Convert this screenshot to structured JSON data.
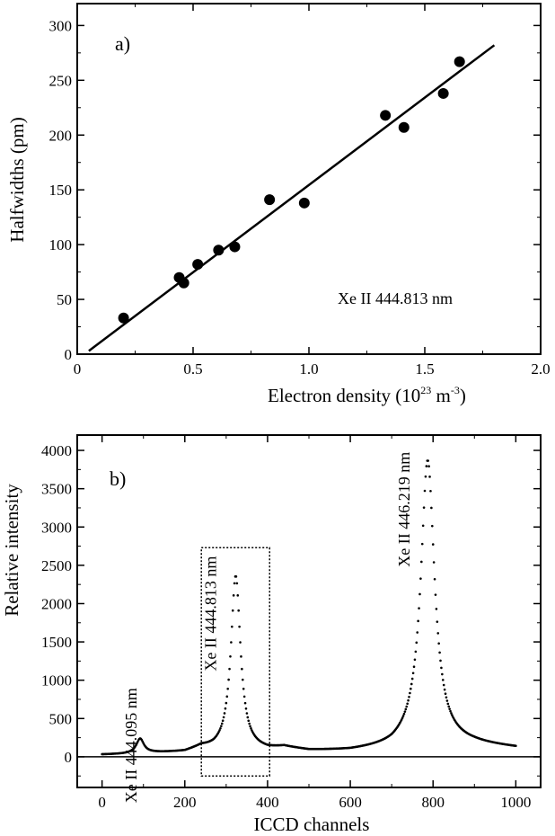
{
  "chart_data": [
    {
      "type": "scatter",
      "panel_label": "a)",
      "xlabel_main": "Electron density  (10",
      "xlabel_exp": "23",
      "xlabel_unit": " m",
      "xlabel_unit_exp": "-3",
      "xlabel_close": ")",
      "ylabel": "Halfwidths  (pm)",
      "xlim": [
        0,
        2.0
      ],
      "ylim": [
        0,
        320
      ],
      "xticks": [
        0,
        0.5,
        1.0,
        1.5,
        2.0
      ],
      "xtick_labels": [
        "0",
        "0.5",
        "1.0",
        "1.5",
        "2.0"
      ],
      "yticks": [
        0,
        50,
        100,
        150,
        200,
        250,
        300
      ],
      "ytick_labels": [
        "0",
        "50",
        "100",
        "150",
        "200",
        "250",
        "300"
      ],
      "annotation": "Xe II 444.813 nm",
      "points": {
        "x": [
          0.2,
          0.44,
          0.46,
          0.52,
          0.61,
          0.68,
          0.83,
          0.98,
          1.33,
          1.41,
          1.58,
          1.65
        ],
        "y": [
          33,
          70,
          65,
          82,
          95,
          98,
          141,
          138,
          218,
          207,
          238,
          267
        ]
      },
      "fit_line": {
        "x": [
          0.05,
          1.8
        ],
        "y": [
          3,
          282
        ]
      }
    },
    {
      "type": "line",
      "panel_label": "b)",
      "xlabel": "ICCD channels",
      "ylabel": "Relative intensity",
      "xlim": [
        -60,
        1060
      ],
      "ylim": [
        -400,
        4200
      ],
      "xticks": [
        0,
        200,
        400,
        600,
        800,
        1000
      ],
      "xtick_labels": [
        "0",
        "200",
        "400",
        "600",
        "800",
        "1000"
      ],
      "yticks": [
        0,
        500,
        1000,
        1500,
        2000,
        2500,
        3000,
        3500,
        4000
      ],
      "ytick_labels": [
        "0",
        "500",
        "1000",
        "1500",
        "2000",
        "2500",
        "3000",
        "3500",
        "4000"
      ],
      "peaks": [
        {
          "label": "Xe II 444.095 nm",
          "center": 92,
          "height": 190,
          "width": 11
        },
        {
          "label": "Xe II 444.813 nm",
          "center": 323,
          "height": 2280,
          "width": 14
        },
        {
          "label": "Xe II 446.219 nm",
          "center": 787,
          "height": 3700,
          "width": 20
        }
      ],
      "baseline": [
        [
          0,
          25
        ],
        [
          50,
          30
        ],
        [
          120,
          45
        ],
        [
          200,
          55
        ],
        [
          240,
          110
        ],
        [
          270,
          80
        ],
        [
          400,
          75
        ],
        [
          440,
          110
        ],
        [
          500,
          70
        ],
        [
          600,
          70
        ],
        [
          700,
          110
        ],
        [
          750,
          180
        ],
        [
          900,
          150
        ],
        [
          1000,
          110
        ]
      ],
      "zero_line": 0,
      "box": {
        "x0": 240,
        "x1": 405,
        "y0": -250,
        "y1": 2730
      }
    }
  ]
}
